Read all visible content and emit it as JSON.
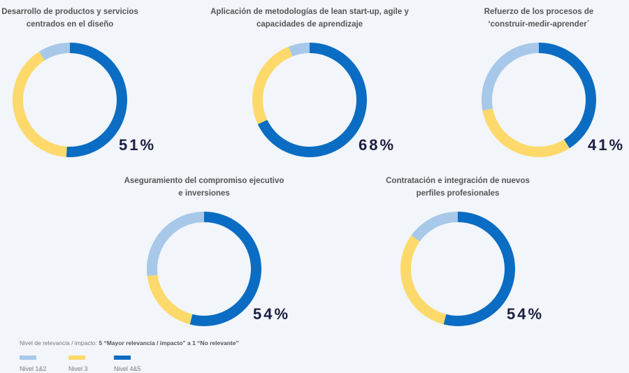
{
  "chart_data": [
    {
      "type": "pie",
      "title": [
        "Desarrollo de productos y servicios",
        "centrados en el diseño"
      ],
      "values": [
        9,
        40,
        51
      ],
      "value_labels": [
        null,
        null,
        "51%"
      ]
    },
    {
      "type": "pie",
      "title": [
        "Aplicación de metodologías de lean start-up, agile y",
        "capacidades de aprendizaje"
      ],
      "values": [
        6,
        26,
        68
      ],
      "value_labels": [
        null,
        null,
        "68%"
      ]
    },
    {
      "type": "pie",
      "title": [
        "Refuerzo de los procesos de",
        "‘construir-medir-aprender´"
      ],
      "values": [
        28,
        31,
        41
      ],
      "value_labels": [
        null,
        null,
        "41%"
      ]
    },
    {
      "type": "pie",
      "title": [
        "Aseguramiento del compromiso ejecutivo",
        "e inversiones"
      ],
      "values": [
        27,
        19,
        54
      ],
      "value_labels": [
        null,
        null,
        "54%"
      ]
    },
    {
      "type": "pie",
      "title": [
        "Contratación e integración de nuevos",
        "perfiles profesionales"
      ],
      "values": [
        15,
        31,
        54
      ],
      "value_labels": [
        null,
        null,
        "54%"
      ]
    }
  ],
  "note": {
    "label": "Nivel de relevancia / impacto: ",
    "scale": "5 “Mayor relevancia / impacto” a 1 “No relevante”"
  },
  "legend": {
    "labels": [
      "Nivel 1&2",
      "Nivel 3",
      "Nivel 4&5"
    ],
    "colors": [
      "#a7c8e8",
      "#fcd96a",
      "#0a6cc2"
    ]
  }
}
